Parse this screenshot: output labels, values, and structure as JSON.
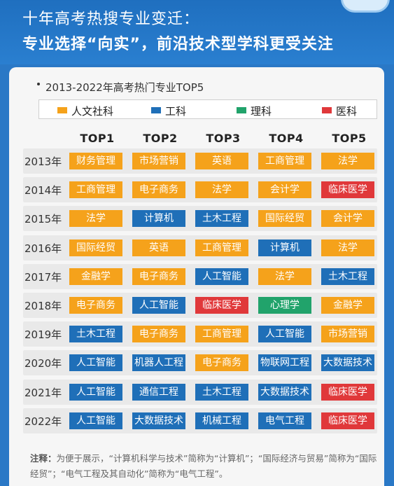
{
  "header": {
    "line1": "十年高考热搜专业变迁：",
    "line2": "专业选择“向实”，前沿技术型学科更受关注"
  },
  "subtitle": "2013-2022年高考热门专业TOP5",
  "legend": [
    {
      "label": "人文社科",
      "color": "#f5a21b"
    },
    {
      "label": "工科",
      "color": "#1f6fb8"
    },
    {
      "label": "理科",
      "color": "#21a36b"
    },
    {
      "label": "医科",
      "color": "#e0383a"
    }
  ],
  "columns": [
    "TOP1",
    "TOP2",
    "TOP3",
    "TOP4",
    "TOP5"
  ],
  "colors": {
    "H": "#f5a21b",
    "E": "#1f6fb8",
    "S": "#21a36b",
    "M": "#e0383a"
  },
  "rows": [
    {
      "year": "2013年",
      "items": [
        {
          "t": "财务管理",
          "c": "H"
        },
        {
          "t": "市场营销",
          "c": "H"
        },
        {
          "t": "英语",
          "c": "H"
        },
        {
          "t": "工商管理",
          "c": "H"
        },
        {
          "t": "法学",
          "c": "H"
        }
      ]
    },
    {
      "year": "2014年",
      "items": [
        {
          "t": "工商管理",
          "c": "H"
        },
        {
          "t": "电子商务",
          "c": "H"
        },
        {
          "t": "法学",
          "c": "H"
        },
        {
          "t": "会计学",
          "c": "H"
        },
        {
          "t": "临床医学",
          "c": "M"
        }
      ]
    },
    {
      "year": "2015年",
      "items": [
        {
          "t": "法学",
          "c": "H"
        },
        {
          "t": "计算机",
          "c": "E"
        },
        {
          "t": "土木工程",
          "c": "E"
        },
        {
          "t": "国际经贸",
          "c": "H"
        },
        {
          "t": "会计学",
          "c": "H"
        }
      ]
    },
    {
      "year": "2016年",
      "items": [
        {
          "t": "国际经贸",
          "c": "H"
        },
        {
          "t": "英语",
          "c": "H"
        },
        {
          "t": "工商管理",
          "c": "H"
        },
        {
          "t": "计算机",
          "c": "E"
        },
        {
          "t": "法学",
          "c": "H"
        }
      ]
    },
    {
      "year": "2017年",
      "items": [
        {
          "t": "金融学",
          "c": "H"
        },
        {
          "t": "电子商务",
          "c": "H"
        },
        {
          "t": "人工智能",
          "c": "E"
        },
        {
          "t": "法学",
          "c": "H"
        },
        {
          "t": "土木工程",
          "c": "E"
        }
      ]
    },
    {
      "year": "2018年",
      "items": [
        {
          "t": "电子商务",
          "c": "H"
        },
        {
          "t": "人工智能",
          "c": "E"
        },
        {
          "t": "临床医学",
          "c": "M"
        },
        {
          "t": "心理学",
          "c": "S"
        },
        {
          "t": "金融学",
          "c": "H"
        }
      ]
    },
    {
      "year": "2019年",
      "items": [
        {
          "t": "土木工程",
          "c": "E"
        },
        {
          "t": "电子商务",
          "c": "H"
        },
        {
          "t": "工商管理",
          "c": "H"
        },
        {
          "t": "人工智能",
          "c": "E"
        },
        {
          "t": "市场营销",
          "c": "H"
        }
      ]
    },
    {
      "year": "2020年",
      "items": [
        {
          "t": "人工智能",
          "c": "E"
        },
        {
          "t": "机器人工程",
          "c": "E"
        },
        {
          "t": "电子商务",
          "c": "H"
        },
        {
          "t": "物联网工程",
          "c": "E"
        },
        {
          "t": "大数据技术",
          "c": "E"
        }
      ]
    },
    {
      "year": "2021年",
      "items": [
        {
          "t": "人工智能",
          "c": "E"
        },
        {
          "t": "通信工程",
          "c": "E"
        },
        {
          "t": "土木工程",
          "c": "E"
        },
        {
          "t": "大数据技术",
          "c": "E"
        },
        {
          "t": "临床医学",
          "c": "M"
        }
      ]
    },
    {
      "year": "2022年",
      "items": [
        {
          "t": "人工智能",
          "c": "E"
        },
        {
          "t": "大数据技术",
          "c": "E"
        },
        {
          "t": "机械工程",
          "c": "E"
        },
        {
          "t": "电气工程",
          "c": "E"
        },
        {
          "t": "临床医学",
          "c": "M"
        }
      ]
    }
  ],
  "note": {
    "label": "注释：",
    "text": "为便于展示，“计算机科学与技术”简称为“计算机”；“国际经济与贸易”简称为“国际经贸”；“电气工程及其自动化”简称为“电气工程”。"
  }
}
